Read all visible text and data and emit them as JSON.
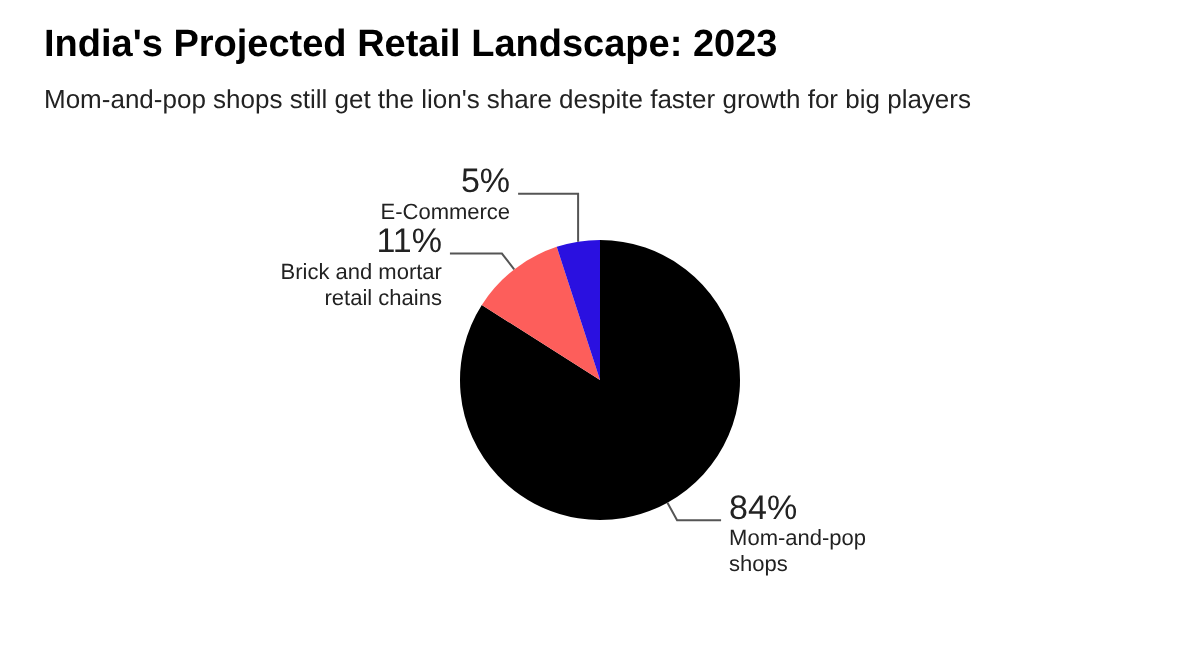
{
  "chart_data": {
    "type": "pie",
    "title": "India's Projected Retail Landscape: 2023",
    "subtitle": "Mom-and-pop shops still get the lion's share despite faster growth for big players",
    "categories": [
      "Mom-and-pop shops",
      "Brick and mortar retail chains",
      "E-Commerce"
    ],
    "values": [
      84,
      11,
      5
    ],
    "colors": [
      "#000000",
      "#fd5e5b",
      "#2a10e0"
    ],
    "value_labels": [
      "84%",
      "11%",
      "5%"
    ],
    "legend": false
  }
}
